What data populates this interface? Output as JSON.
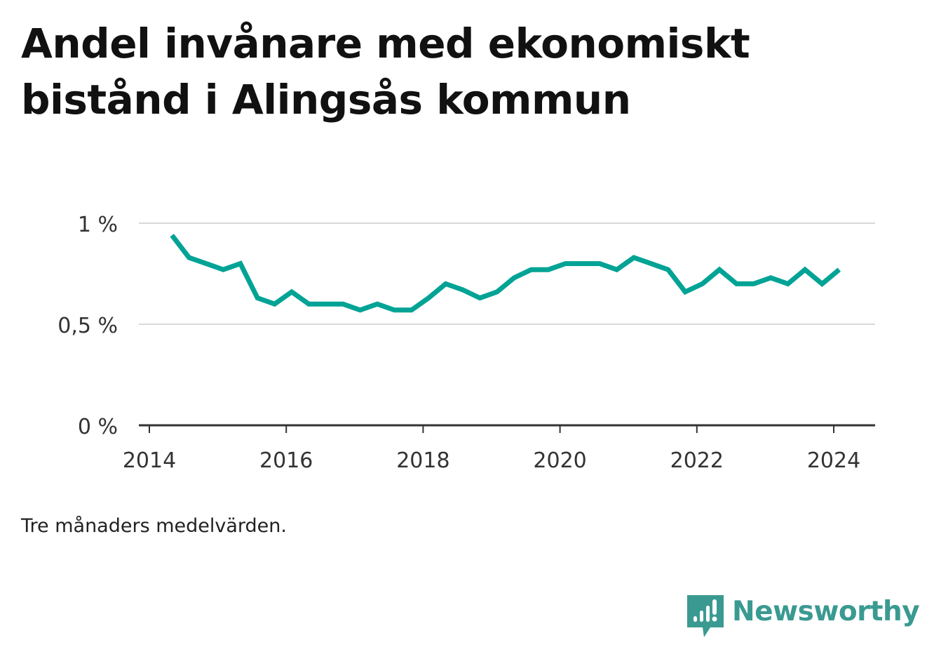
{
  "title": "Andel invånare med ekonomiskt bistånd i Alingsås kommun",
  "footnote": "Tre månaders medelvärden.",
  "brand": {
    "name": "Newsworthy",
    "icon": "newsworthy-logo-icon",
    "color": "#3a9a91"
  },
  "chart_data": {
    "type": "line",
    "title": "Andel invånare med ekonomiskt bistånd i Alingsås kommun",
    "xlabel": "",
    "ylabel": "",
    "x_ticks": [
      "2014",
      "2016",
      "2018",
      "2020",
      "2022",
      "2024"
    ],
    "y_ticks": [
      "0 %",
      "0,5 %",
      "1 %"
    ],
    "y_tick_values": [
      0,
      0.5,
      1.0
    ],
    "ylim": [
      0,
      1.0
    ],
    "xlim": [
      2014.0,
      2024.6
    ],
    "grid": "horizontal",
    "line_color": "#00a395",
    "series": [
      {
        "x": [
          2014.33,
          2014.58,
          2014.83,
          2015.08,
          2015.33,
          2015.58,
          2015.83,
          2016.08,
          2016.33,
          2016.58,
          2016.83,
          2017.08,
          2017.33,
          2017.58,
          2017.83,
          2018.08,
          2018.33,
          2018.58,
          2018.83,
          2019.08,
          2019.33,
          2019.58,
          2019.83,
          2020.08,
          2020.33,
          2020.58,
          2020.83,
          2021.08,
          2021.33,
          2021.58,
          2021.83,
          2022.08,
          2022.33,
          2022.58,
          2022.83,
          2023.08,
          2023.33,
          2023.58,
          2023.83,
          2024.08
        ],
        "values": [
          0.94,
          0.83,
          0.8,
          0.77,
          0.8,
          0.63,
          0.6,
          0.66,
          0.6,
          0.6,
          0.6,
          0.57,
          0.6,
          0.57,
          0.57,
          0.63,
          0.7,
          0.67,
          0.63,
          0.66,
          0.73,
          0.77,
          0.77,
          0.8,
          0.8,
          0.8,
          0.77,
          0.83,
          0.8,
          0.77,
          0.66,
          0.7,
          0.77,
          0.7,
          0.7,
          0.73,
          0.7,
          0.77,
          0.7,
          0.77
        ]
      }
    ]
  }
}
